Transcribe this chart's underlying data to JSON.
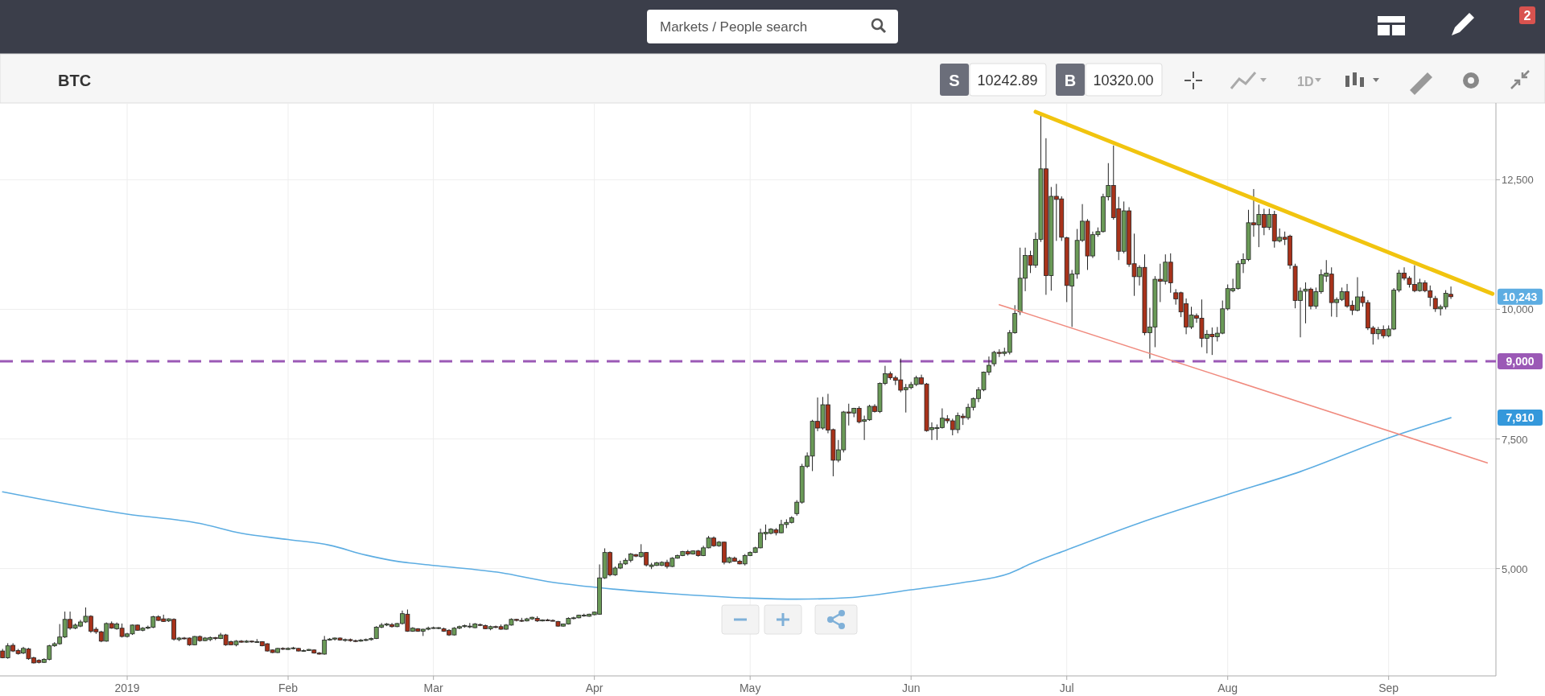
{
  "chart_data": {
    "type": "candlestick",
    "title": "BTC",
    "annotations": [
      "Markets / People search",
      "S",
      "10242.89",
      "B",
      "10320.00",
      "1D",
      "2",
      "10,243",
      "7,910"
    ],
    "xlim": [
      "2018-12-07T12:00",
      "2019-09-21T16:00"
    ],
    "xticks": [
      {
        "value": "2019-01-01",
        "label": "2019"
      },
      {
        "value": "2019-02-01",
        "label": "Feb"
      },
      {
        "value": "2019-03-01",
        "label": "Mar"
      },
      {
        "value": "2019-04-01",
        "label": "Apr"
      },
      {
        "value": "2019-05-01",
        "label": "May"
      },
      {
        "value": "2019-06-01",
        "label": "Jun"
      },
      {
        "value": "2019-07-01",
        "label": "Jul"
      },
      {
        "value": "2019-08-01",
        "label": "Aug"
      },
      {
        "value": "2019-09-01",
        "label": "Sep"
      }
    ],
    "ylim": [
      2930,
      13980
    ],
    "yticks": [
      {
        "value": 5000,
        "label": "5,000"
      },
      {
        "value": 7500,
        "label": "7,500"
      },
      {
        "value": 10000,
        "label": "10,000"
      },
      {
        "value": 12500,
        "label": "12,500"
      }
    ],
    "grid": true,
    "ref_lines": [
      {
        "axis": "y",
        "value": 9000,
        "label": "9,000",
        "color": "#9b59b6",
        "line_style": "dashed"
      }
    ],
    "x": [
      "2018-12-08",
      "2018-12-09",
      "2018-12-10",
      "2018-12-11",
      "2018-12-12",
      "2018-12-13",
      "2018-12-14",
      "2018-12-15",
      "2018-12-16",
      "2018-12-17",
      "2018-12-18",
      "2018-12-19",
      "2018-12-20",
      "2018-12-21",
      "2018-12-22",
      "2018-12-23",
      "2018-12-24",
      "2018-12-25",
      "2018-12-26",
      "2018-12-27",
      "2018-12-28",
      "2018-12-29",
      "2018-12-30",
      "2018-12-31",
      "2019-01-01",
      "2019-01-02",
      "2019-01-03",
      "2019-01-04",
      "2019-01-05",
      "2019-01-06",
      "2019-01-07",
      "2019-01-08",
      "2019-01-09",
      "2019-01-10",
      "2019-01-11",
      "2019-01-12",
      "2019-01-13",
      "2019-01-14",
      "2019-01-15",
      "2019-01-16",
      "2019-01-17",
      "2019-01-18",
      "2019-01-19",
      "2019-01-20",
      "2019-01-21",
      "2019-01-22",
      "2019-01-23",
      "2019-01-24",
      "2019-01-25",
      "2019-01-26",
      "2019-01-27",
      "2019-01-28",
      "2019-01-29",
      "2019-01-30",
      "2019-01-31",
      "2019-02-01",
      "2019-02-02",
      "2019-02-03",
      "2019-02-04",
      "2019-02-05",
      "2019-02-06",
      "2019-02-07",
      "2019-02-08",
      "2019-02-09",
      "2019-02-10",
      "2019-02-11",
      "2019-02-12",
      "2019-02-13",
      "2019-02-14",
      "2019-02-15",
      "2019-02-16",
      "2019-02-17",
      "2019-02-18",
      "2019-02-19",
      "2019-02-20",
      "2019-02-21",
      "2019-02-22",
      "2019-02-23",
      "2019-02-24",
      "2019-02-25",
      "2019-02-26",
      "2019-02-27",
      "2019-02-28",
      "2019-03-01",
      "2019-03-02",
      "2019-03-03",
      "2019-03-04",
      "2019-03-05",
      "2019-03-06",
      "2019-03-07",
      "2019-03-08",
      "2019-03-09",
      "2019-03-10",
      "2019-03-11",
      "2019-03-12",
      "2019-03-13",
      "2019-03-14",
      "2019-03-15",
      "2019-03-16",
      "2019-03-17",
      "2019-03-18",
      "2019-03-19",
      "2019-03-20",
      "2019-03-21",
      "2019-03-22",
      "2019-03-23",
      "2019-03-24",
      "2019-03-25",
      "2019-03-26",
      "2019-03-27",
      "2019-03-28",
      "2019-03-29",
      "2019-03-30",
      "2019-03-31",
      "2019-04-01",
      "2019-04-02",
      "2019-04-03",
      "2019-04-04",
      "2019-04-05",
      "2019-04-06",
      "2019-04-07",
      "2019-04-08",
      "2019-04-09",
      "2019-04-10",
      "2019-04-11",
      "2019-04-12",
      "2019-04-13",
      "2019-04-14",
      "2019-04-15",
      "2019-04-16",
      "2019-04-17",
      "2019-04-18",
      "2019-04-19",
      "2019-04-20",
      "2019-04-21",
      "2019-04-22",
      "2019-04-23",
      "2019-04-24",
      "2019-04-25",
      "2019-04-26",
      "2019-04-27",
      "2019-04-28",
      "2019-04-29",
      "2019-04-30",
      "2019-05-01",
      "2019-05-02",
      "2019-05-03",
      "2019-05-04",
      "2019-05-05",
      "2019-05-06",
      "2019-05-07",
      "2019-05-08",
      "2019-05-09",
      "2019-05-10",
      "2019-05-11",
      "2019-05-12",
      "2019-05-13",
      "2019-05-14",
      "2019-05-15",
      "2019-05-16",
      "2019-05-17",
      "2019-05-18",
      "2019-05-19",
      "2019-05-20",
      "2019-05-21",
      "2019-05-22",
      "2019-05-23",
      "2019-05-24",
      "2019-05-25",
      "2019-05-26",
      "2019-05-27",
      "2019-05-28",
      "2019-05-29",
      "2019-05-30",
      "2019-05-31",
      "2019-06-01",
      "2019-06-02",
      "2019-06-03",
      "2019-06-04",
      "2019-06-05",
      "2019-06-06",
      "2019-06-07",
      "2019-06-08",
      "2019-06-09",
      "2019-06-10",
      "2019-06-11",
      "2019-06-12",
      "2019-06-13",
      "2019-06-14",
      "2019-06-15",
      "2019-06-16",
      "2019-06-17",
      "2019-06-18",
      "2019-06-19",
      "2019-06-20",
      "2019-06-21",
      "2019-06-22",
      "2019-06-23",
      "2019-06-24",
      "2019-06-25",
      "2019-06-26",
      "2019-06-27",
      "2019-06-28",
      "2019-06-29",
      "2019-06-30",
      "2019-07-01",
      "2019-07-02",
      "2019-07-03",
      "2019-07-04",
      "2019-07-05",
      "2019-07-06",
      "2019-07-07",
      "2019-07-08",
      "2019-07-09",
      "2019-07-10",
      "2019-07-11",
      "2019-07-12",
      "2019-07-13",
      "2019-07-14",
      "2019-07-15",
      "2019-07-16",
      "2019-07-17",
      "2019-07-18",
      "2019-07-19",
      "2019-07-20",
      "2019-07-21",
      "2019-07-22",
      "2019-07-23",
      "2019-07-24",
      "2019-07-25",
      "2019-07-26",
      "2019-07-27",
      "2019-07-28",
      "2019-07-29",
      "2019-07-30",
      "2019-07-31",
      "2019-08-01",
      "2019-08-02",
      "2019-08-03",
      "2019-08-04",
      "2019-08-05",
      "2019-08-06",
      "2019-08-07",
      "2019-08-08",
      "2019-08-09",
      "2019-08-10",
      "2019-08-11",
      "2019-08-12",
      "2019-08-13",
      "2019-08-14",
      "2019-08-15",
      "2019-08-16",
      "2019-08-17",
      "2019-08-18",
      "2019-08-19",
      "2019-08-20",
      "2019-08-21",
      "2019-08-22",
      "2019-08-23",
      "2019-08-24",
      "2019-08-25",
      "2019-08-26",
      "2019-08-27",
      "2019-08-28",
      "2019-08-29",
      "2019-08-30",
      "2019-08-31",
      "2019-09-01",
      "2019-09-02",
      "2019-09-03",
      "2019-09-04",
      "2019-09-05",
      "2019-09-06",
      "2019-09-07",
      "2019-09-08",
      "2019-09-09",
      "2019-09-10",
      "2019-09-11",
      "2019-09-12",
      "2019-09-13"
    ],
    "ohlc": [
      [
        3410,
        3450,
        3270,
        3280
      ],
      [
        3280,
        3560,
        3260,
        3510
      ],
      [
        3520,
        3560,
        3390,
        3410
      ],
      [
        3420,
        3450,
        3340,
        3360
      ],
      [
        3370,
        3490,
        3350,
        3460
      ],
      [
        3450,
        3470,
        3240,
        3260
      ],
      [
        3280,
        3300,
        3170,
        3180
      ],
      [
        3230,
        3250,
        3170,
        3190
      ],
      [
        3190,
        3270,
        3180,
        3250
      ],
      [
        3250,
        3530,
        3230,
        3510
      ],
      [
        3510,
        3580,
        3490,
        3550
      ],
      [
        3550,
        3930,
        3530,
        3680
      ],
      [
        3680,
        4170,
        3660,
        4020
      ],
      [
        4020,
        4170,
        3820,
        3850
      ],
      [
        3850,
        3940,
        3830,
        3910
      ],
      [
        3890,
        4010,
        3870,
        3970
      ],
      [
        3970,
        4250,
        3950,
        4080
      ],
      [
        4080,
        4100,
        3760,
        3790
      ],
      [
        3830,
        3870,
        3740,
        3780
      ],
      [
        3780,
        3800,
        3580,
        3600
      ],
      [
        3600,
        3960,
        3590,
        3940
      ],
      [
        3940,
        3980,
        3840,
        3850
      ],
      [
        3840,
        3960,
        3820,
        3930
      ],
      [
        3850,
        3940,
        3670,
        3690
      ],
      [
        3690,
        3760,
        3670,
        3740
      ],
      [
        3740,
        3920,
        3720,
        3910
      ],
      [
        3910,
        3920,
        3800,
        3810
      ],
      [
        3810,
        3870,
        3790,
        3850
      ],
      [
        3850,
        3900,
        3830,
        3870
      ],
      [
        3870,
        4090,
        3850,
        4070
      ],
      [
        4070,
        4100,
        3990,
        4000
      ],
      [
        4030,
        4110,
        3970,
        3980
      ],
      [
        3990,
        4040,
        3970,
        4030
      ],
      [
        4020,
        4040,
        3610,
        3640
      ],
      [
        3630,
        3680,
        3600,
        3660
      ],
      [
        3660,
        3680,
        3630,
        3650
      ],
      [
        3660,
        3670,
        3510,
        3530
      ],
      [
        3530,
        3700,
        3520,
        3690
      ],
      [
        3690,
        3710,
        3590,
        3610
      ],
      [
        3610,
        3680,
        3600,
        3660
      ],
      [
        3630,
        3690,
        3600,
        3670
      ],
      [
        3670,
        3680,
        3620,
        3650
      ],
      [
        3650,
        3760,
        3640,
        3720
      ],
      [
        3720,
        3740,
        3510,
        3530
      ],
      [
        3590,
        3610,
        3520,
        3530
      ],
      [
        3530,
        3620,
        3500,
        3600
      ],
      [
        3600,
        3620,
        3570,
        3580
      ],
      [
        3580,
        3620,
        3570,
        3600
      ],
      [
        3600,
        3610,
        3570,
        3590
      ],
      [
        3580,
        3640,
        3570,
        3590
      ],
      [
        3590,
        3600,
        3500,
        3510
      ],
      [
        3550,
        3560,
        3400,
        3410
      ],
      [
        3430,
        3440,
        3370,
        3380
      ],
      [
        3380,
        3470,
        3370,
        3460
      ],
      [
        3460,
        3480,
        3430,
        3450
      ],
      [
        3440,
        3480,
        3430,
        3460
      ],
      [
        3460,
        3490,
        3440,
        3470
      ],
      [
        3460,
        3470,
        3400,
        3410
      ],
      [
        3410,
        3440,
        3400,
        3420
      ],
      [
        3420,
        3450,
        3410,
        3440
      ],
      [
        3430,
        3440,
        3360,
        3370
      ],
      [
        3370,
        3390,
        3340,
        3350
      ],
      [
        3350,
        3700,
        3340,
        3620
      ],
      [
        3620,
        3660,
        3610,
        3640
      ],
      [
        3640,
        3670,
        3610,
        3660
      ],
      [
        3660,
        3670,
        3610,
        3620
      ],
      [
        3620,
        3650,
        3590,
        3630
      ],
      [
        3630,
        3650,
        3590,
        3610
      ],
      [
        3610,
        3630,
        3580,
        3600
      ],
      [
        3600,
        3640,
        3590,
        3620
      ],
      [
        3620,
        3650,
        3600,
        3630
      ],
      [
        3630,
        3670,
        3610,
        3650
      ],
      [
        3650,
        3890,
        3640,
        3870
      ],
      [
        3870,
        3950,
        3850,
        3910
      ],
      [
        3910,
        3950,
        3890,
        3930
      ],
      [
        3920,
        3950,
        3860,
        3880
      ],
      [
        3880,
        3950,
        3870,
        3940
      ],
      [
        3940,
        4190,
        3920,
        4130
      ],
      [
        4120,
        4210,
        3780,
        3790
      ],
      [
        3790,
        3870,
        3780,
        3850
      ],
      [
        3840,
        3850,
        3780,
        3790
      ],
      [
        3790,
        3840,
        3700,
        3830
      ],
      [
        3830,
        3880,
        3810,
        3850
      ],
      [
        3850,
        3880,
        3840,
        3860
      ],
      [
        3850,
        3870,
        3830,
        3860
      ],
      [
        3840,
        3860,
        3780,
        3790
      ],
      [
        3810,
        3830,
        3700,
        3720
      ],
      [
        3720,
        3870,
        3710,
        3850
      ],
      [
        3850,
        3900,
        3830,
        3880
      ],
      [
        3880,
        3920,
        3860,
        3900
      ],
      [
        3880,
        3950,
        3850,
        3890
      ],
      [
        3860,
        3950,
        3850,
        3930
      ],
      [
        3920,
        3940,
        3890,
        3910
      ],
      [
        3900,
        3920,
        3830,
        3840
      ],
      [
        3840,
        3900,
        3810,
        3880
      ],
      [
        3880,
        3900,
        3850,
        3870
      ],
      [
        3880,
        3920,
        3820,
        3830
      ],
      [
        3830,
        3930,
        3820,
        3910
      ],
      [
        3910,
        4040,
        3900,
        4020
      ],
      [
        4020,
        4030,
        3980,
        4000
      ],
      [
        4000,
        4050,
        3970,
        3990
      ],
      [
        3990,
        4050,
        3980,
        4030
      ],
      [
        4030,
        4070,
        4010,
        4060
      ],
      [
        4040,
        4080,
        3970,
        3990
      ],
      [
        3990,
        4020,
        3980,
        4010
      ],
      [
        4010,
        4030,
        3990,
        4000
      ],
      [
        4000,
        4020,
        3980,
        3990
      ],
      [
        3980,
        3990,
        3880,
        3890
      ],
      [
        3890,
        3940,
        3880,
        3930
      ],
      [
        3930,
        4060,
        3920,
        4040
      ],
      [
        4040,
        4070,
        4020,
        4050
      ],
      [
        4050,
        4110,
        4040,
        4100
      ],
      [
        4090,
        4130,
        4070,
        4100
      ],
      [
        4080,
        4130,
        4070,
        4120
      ],
      [
        4110,
        4170,
        4100,
        4160
      ],
      [
        4120,
        5080,
        4110,
        4820
      ],
      [
        4820,
        5390,
        4800,
        5310
      ],
      [
        5310,
        5330,
        4850,
        4880
      ],
      [
        4880,
        5040,
        4860,
        5010
      ],
      [
        5010,
        5150,
        4990,
        5090
      ],
      [
        5090,
        5200,
        5070,
        5160
      ],
      [
        5160,
        5300,
        5120,
        5280
      ],
      [
        5270,
        5280,
        5220,
        5240
      ],
      [
        5230,
        5470,
        5210,
        5310
      ],
      [
        5310,
        5320,
        5040,
        5070
      ],
      [
        5040,
        5110,
        4990,
        5070
      ],
      [
        5060,
        5130,
        5050,
        5110
      ],
      [
        5060,
        5140,
        5050,
        5120
      ],
      [
        5120,
        5170,
        5000,
        5040
      ],
      [
        5040,
        5220,
        5030,
        5200
      ],
      [
        5200,
        5270,
        5190,
        5250
      ],
      [
        5250,
        5340,
        5240,
        5330
      ],
      [
        5330,
        5360,
        5250,
        5280
      ],
      [
        5280,
        5350,
        5270,
        5340
      ],
      [
        5340,
        5360,
        5230,
        5250
      ],
      [
        5250,
        5440,
        5240,
        5400
      ],
      [
        5400,
        5630,
        5390,
        5590
      ],
      [
        5590,
        5620,
        5420,
        5440
      ],
      [
        5440,
        5530,
        5420,
        5510
      ],
      [
        5510,
        5520,
        5080,
        5120
      ],
      [
        5120,
        5230,
        5100,
        5210
      ],
      [
        5200,
        5230,
        5130,
        5140
      ],
      [
        5140,
        5170,
        5080,
        5090
      ],
      [
        5090,
        5280,
        5060,
        5250
      ],
      [
        5250,
        5330,
        5240,
        5310
      ],
      [
        5310,
        5420,
        5300,
        5400
      ],
      [
        5400,
        5770,
        5390,
        5690
      ],
      [
        5670,
        5850,
        5550,
        5700
      ],
      [
        5680,
        5780,
        5660,
        5760
      ],
      [
        5750,
        5780,
        5640,
        5690
      ],
      [
        5690,
        5940,
        5680,
        5850
      ],
      [
        5850,
        5950,
        5780,
        5890
      ],
      [
        5890,
        6010,
        5870,
        5980
      ],
      [
        6060,
        6320,
        6020,
        6280
      ],
      [
        6280,
        7020,
        6250,
        6970
      ],
      [
        6970,
        7240,
        6940,
        7170
      ],
      [
        7170,
        7870,
        6880,
        7840
      ],
      [
        7840,
        8300,
        7650,
        7710
      ],
      [
        7710,
        8310,
        7680,
        8160
      ],
      [
        8160,
        8370,
        7610,
        7670
      ],
      [
        7680,
        7700,
        6780,
        7090
      ],
      [
        7090,
        7480,
        7050,
        7290
      ],
      [
        7290,
        8040,
        7240,
        8020
      ],
      [
        8020,
        8180,
        7760,
        8000
      ],
      [
        8000,
        8100,
        7920,
        8090
      ],
      [
        8090,
        8130,
        7800,
        7830
      ],
      [
        7840,
        7950,
        7480,
        7870
      ],
      [
        7870,
        8160,
        7850,
        8130
      ],
      [
        8130,
        8170,
        8010,
        8030
      ],
      [
        8030,
        8590,
        8000,
        8570
      ],
      [
        8570,
        8910,
        8540,
        8760
      ],
      [
        8760,
        8800,
        8640,
        8680
      ],
      [
        8680,
        8720,
        8540,
        8630
      ],
      [
        8640,
        9050,
        8400,
        8440
      ],
      [
        8450,
        8560,
        8010,
        8490
      ],
      [
        8490,
        8600,
        8460,
        8550
      ],
      [
        8550,
        8720,
        8520,
        8680
      ],
      [
        8680,
        8740,
        8550,
        8560
      ],
      [
        8560,
        8580,
        7640,
        7660
      ],
      [
        7680,
        7820,
        7480,
        7720
      ],
      [
        7700,
        7780,
        7480,
        7720
      ],
      [
        7720,
        8090,
        7700,
        7900
      ],
      [
        7890,
        7960,
        7800,
        7850
      ],
      [
        7850,
        7890,
        7570,
        7680
      ],
      [
        7680,
        8010,
        7610,
        7950
      ],
      [
        7940,
        7990,
        7770,
        7910
      ],
      [
        7910,
        8180,
        7870,
        8110
      ],
      [
        8110,
        8300,
        8050,
        8280
      ],
      [
        8280,
        8500,
        8210,
        8450
      ],
      [
        8450,
        8800,
        8420,
        8790
      ],
      [
        8790,
        9090,
        8730,
        8920
      ],
      [
        8950,
        9200,
        8900,
        9170
      ],
      [
        9170,
        9230,
        9080,
        9150
      ],
      [
        9150,
        9260,
        9100,
        9180
      ],
      [
        9170,
        9600,
        9130,
        9550
      ],
      [
        9550,
        10080,
        9530,
        9920
      ],
      [
        9950,
        11190,
        9890,
        10600
      ],
      [
        10600,
        11190,
        10350,
        11040
      ],
      [
        11040,
        11130,
        10700,
        10850
      ],
      [
        10850,
        11480,
        10800,
        11350
      ],
      [
        11350,
        13730,
        11300,
        12710
      ],
      [
        12710,
        13300,
        10280,
        10650
      ],
      [
        10650,
        12360,
        10360,
        12180
      ],
      [
        12180,
        12420,
        11320,
        12120
      ],
      [
        12130,
        12180,
        11320,
        11390
      ],
      [
        11380,
        11400,
        10140,
        10460
      ],
      [
        10450,
        10760,
        9660,
        10680
      ],
      [
        10680,
        11550,
        10590,
        11330
      ],
      [
        11330,
        12030,
        11300,
        11700
      ],
      [
        11700,
        11740,
        10760,
        11030
      ],
      [
        11030,
        11500,
        10990,
        11440
      ],
      [
        11440,
        11580,
        11400,
        11500
      ],
      [
        11500,
        12230,
        11480,
        12170
      ],
      [
        12170,
        12820,
        12100,
        12390
      ],
      [
        12390,
        13160,
        11730,
        11770
      ],
      [
        11940,
        12170,
        10950,
        11120
      ],
      [
        11120,
        12080,
        11080,
        11900
      ],
      [
        11900,
        11970,
        10820,
        10870
      ],
      [
        10880,
        11460,
        10260,
        10630
      ],
      [
        10630,
        10850,
        10460,
        10810
      ],
      [
        10810,
        11060,
        9500,
        9550
      ],
      [
        9550,
        10030,
        9050,
        9660
      ],
      [
        9660,
        10640,
        9270,
        10580
      ],
      [
        10580,
        10880,
        10140,
        10540
      ],
      [
        10540,
        11060,
        10480,
        10910
      ],
      [
        10910,
        11080,
        10320,
        10510
      ],
      [
        10320,
        10390,
        10090,
        10200
      ],
      [
        10320,
        10340,
        9850,
        9950
      ],
      [
        10110,
        10210,
        9520,
        9660
      ],
      [
        9660,
        10050,
        9620,
        9890
      ],
      [
        9880,
        9920,
        9740,
        9830
      ],
      [
        9830,
        10190,
        9270,
        9440
      ],
      [
        9440,
        9600,
        9150,
        9520
      ],
      [
        9520,
        9650,
        9120,
        9470
      ],
      [
        9470,
        9660,
        9380,
        9540
      ],
      [
        9540,
        10170,
        9520,
        10010
      ],
      [
        10010,
        10480,
        9980,
        10400
      ],
      [
        10360,
        10590,
        10330,
        10400
      ],
      [
        10400,
        10940,
        10380,
        10880
      ],
      [
        10880,
        11080,
        10700,
        10960
      ],
      [
        10960,
        11920,
        10930,
        11670
      ],
      [
        11670,
        12320,
        11400,
        11630
      ],
      [
        11630,
        12020,
        11200,
        11830
      ],
      [
        11830,
        11940,
        11430,
        11580
      ],
      [
        11580,
        11940,
        11530,
        11830
      ],
      [
        11830,
        11900,
        11190,
        11320
      ],
      [
        11320,
        11560,
        11290,
        11390
      ],
      [
        11390,
        11500,
        11240,
        11350
      ],
      [
        11410,
        11440,
        10780,
        10850
      ],
      [
        10830,
        10880,
        10020,
        10170
      ],
      [
        10170,
        10420,
        9460,
        10350
      ],
      [
        10350,
        10520,
        9730,
        10390
      ],
      [
        10390,
        10420,
        10000,
        10060
      ],
      [
        10060,
        10420,
        10010,
        10340
      ],
      [
        10340,
        10770,
        10300,
        10670
      ],
      [
        10640,
        10950,
        10530,
        10700
      ],
      [
        10680,
        10810,
        9860,
        10130
      ],
      [
        10130,
        10230,
        9850,
        10190
      ],
      [
        10190,
        10420,
        10160,
        10340
      ],
      [
        10340,
        10490,
        10030,
        10060
      ],
      [
        10080,
        10170,
        9890,
        9980
      ],
      [
        9980,
        10620,
        9960,
        10240
      ],
      [
        10240,
        10350,
        10050,
        10130
      ],
      [
        10130,
        10180,
        9600,
        9640
      ],
      [
        9640,
        9680,
        9320,
        9530
      ],
      [
        9530,
        9660,
        9420,
        9610
      ],
      [
        9610,
        9690,
        9440,
        9490
      ],
      [
        9490,
        9690,
        9460,
        9620
      ],
      [
        9620,
        10410,
        9600,
        10370
      ],
      [
        10370,
        10760,
        10330,
        10700
      ],
      [
        10700,
        10810,
        10560,
        10600
      ],
      [
        10600,
        10640,
        10420,
        10480
      ],
      [
        10480,
        10850,
        10330,
        10360
      ],
      [
        10360,
        10590,
        10340,
        10510
      ],
      [
        10510,
        10560,
        10330,
        10360
      ],
      [
        10360,
        10460,
        10060,
        10230
      ],
      [
        10210,
        10260,
        9950,
        10010
      ],
      [
        10010,
        10090,
        9880,
        10050
      ],
      [
        10050,
        10370,
        10000,
        10310
      ],
      [
        10290,
        10440,
        10200,
        10243
      ]
    ],
    "series": [
      {
        "type": "line",
        "color": "#5dade2",
        "x": [
          "2018-12-08",
          "2019-01-01",
          "2019-01-15",
          "2019-01-23",
          "2019-02-01",
          "2019-02-09",
          "2019-02-16",
          "2019-02-22",
          "2019-03-01",
          "2019-03-14",
          "2019-03-23",
          "2019-04-01",
          "2019-04-15",
          "2019-05-01",
          "2019-05-10",
          "2019-05-20",
          "2019-06-01",
          "2019-06-11",
          "2019-06-20",
          "2019-06-24",
          "2019-07-01",
          "2019-07-15",
          "2019-08-01",
          "2019-08-15",
          "2019-09-01",
          "2019-09-13"
        ],
        "values": [
          6480,
          6050,
          5870,
          5680,
          5560,
          5450,
          5260,
          5140,
          5060,
          4920,
          4750,
          4640,
          4520,
          4430,
          4410,
          4440,
          4590,
          4730,
          4910,
          5090,
          5360,
          5880,
          6430,
          6870,
          7520,
          7910
        ]
      },
      {
        "type": "line",
        "color": "#f1c40f",
        "x": [
          "2019-06-25",
          "2019-09-21"
        ],
        "values": [
          13810,
          10300
        ]
      },
      {
        "type": "line",
        "color": "#f08a7e",
        "x": [
          "2019-06-18",
          "2019-09-20"
        ],
        "values": [
          10090,
          7040
        ]
      }
    ]
  }
}
